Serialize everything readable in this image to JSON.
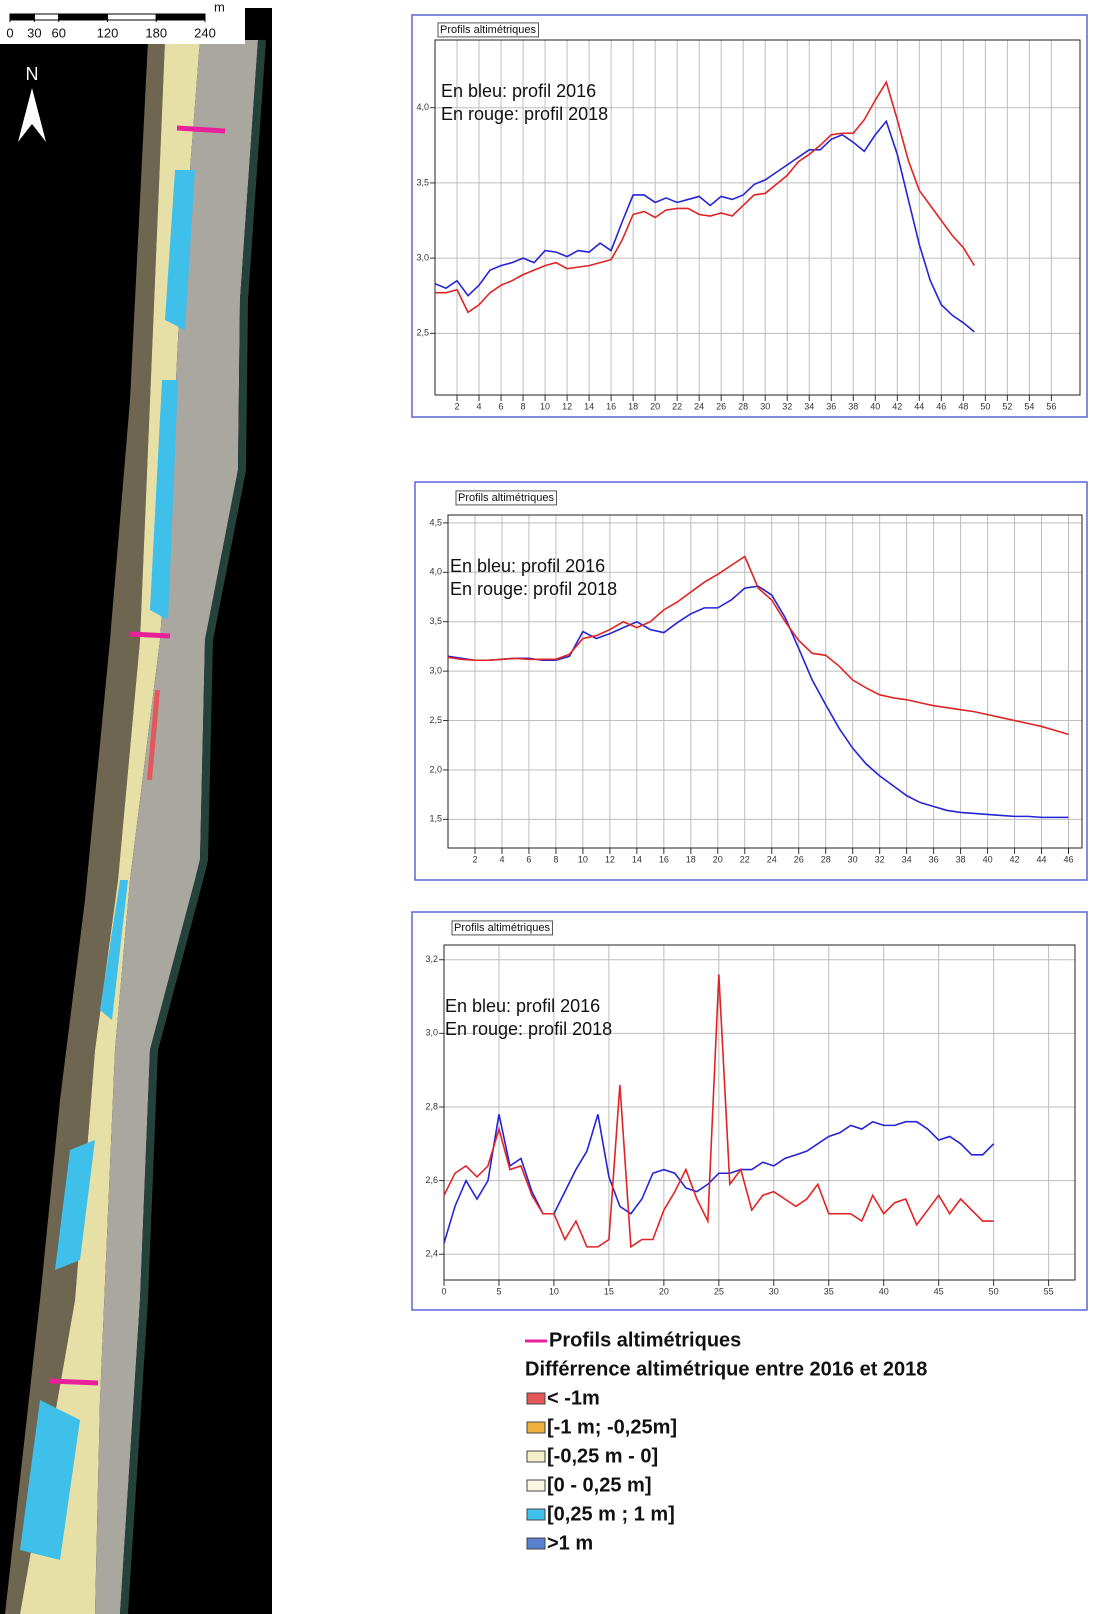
{
  "map": {
    "north": "N",
    "scale_ticks": [
      0,
      30,
      60,
      120,
      180,
      240
    ],
    "scale_unit": "m"
  },
  "legend": {
    "profile_line": {
      "label": "Profils altimétriques",
      "color": "#e8219a"
    },
    "title": "Différrence altimétrique entre 2016 et 2018",
    "items": [
      {
        "label": "< -1m",
        "color": "#e4585a"
      },
      {
        "label": "[-1 m; -0,25m]",
        "color": "#f0b040"
      },
      {
        "label": "[-0,25 m - 0]",
        "color": "#f3efc8"
      },
      {
        "label": "[0 - 0,25 m]",
        "color": "#fbf6e2"
      },
      {
        "label": "[0,25 m ; 1 m]",
        "color": "#3fc0ea"
      },
      {
        "label": ">1 m",
        "color": "#5a80d0"
      }
    ]
  },
  "chart_data": [
    {
      "type": "line",
      "title": "Profils altimétriques",
      "annotations": [
        "En bleu: profil 2016",
        "En rouge: profil 2018"
      ],
      "x": [
        0,
        1,
        2,
        3,
        4,
        5,
        6,
        7,
        8,
        9,
        10,
        11,
        12,
        13,
        14,
        15,
        16,
        17,
        18,
        19,
        20,
        21,
        22,
        23,
        24,
        25,
        26,
        27,
        28,
        29,
        30,
        31,
        32,
        33,
        34,
        35,
        36,
        37,
        38,
        39,
        40,
        41,
        42,
        43,
        44,
        45,
        46,
        47,
        48,
        49
      ],
      "series": [
        {
          "color": "#2424d8",
          "values": [
            2.83,
            2.8,
            2.85,
            2.75,
            2.82,
            2.92,
            2.95,
            2.97,
            3.0,
            2.97,
            3.05,
            3.04,
            3.01,
            3.05,
            3.04,
            3.1,
            3.05,
            3.24,
            3.42,
            3.42,
            3.37,
            3.4,
            3.37,
            3.39,
            3.41,
            3.35,
            3.41,
            3.39,
            3.42,
            3.49,
            3.52,
            3.57,
            3.62,
            3.67,
            3.72,
            3.72,
            3.79,
            3.82,
            3.77,
            3.71,
            3.82,
            3.91,
            3.69,
            3.39,
            3.09,
            2.85,
            2.69,
            2.62,
            2.57,
            2.51
          ]
        },
        {
          "color": "#e02424",
          "values": [
            2.77,
            2.77,
            2.79,
            2.64,
            2.69,
            2.77,
            2.82,
            2.85,
            2.89,
            2.92,
            2.95,
            2.97,
            2.93,
            2.94,
            2.95,
            2.97,
            2.99,
            3.12,
            3.29,
            3.31,
            3.27,
            3.32,
            3.33,
            3.33,
            3.29,
            3.28,
            3.3,
            3.28,
            3.35,
            3.42,
            3.43,
            3.49,
            3.55,
            3.64,
            3.69,
            3.75,
            3.82,
            3.83,
            3.83,
            3.92,
            4.05,
            4.17,
            3.92,
            3.65,
            3.45,
            3.35,
            3.25,
            3.15,
            3.07,
            2.95
          ]
        }
      ],
      "xlim": [
        0,
        58.6
      ],
      "ylim": [
        2.09,
        4.45
      ],
      "xticks": [
        2,
        4,
        6,
        8,
        10,
        12,
        14,
        16,
        18,
        20,
        22,
        24,
        26,
        28,
        30,
        32,
        34,
        36,
        38,
        40,
        42,
        44,
        46,
        48,
        50,
        52,
        54,
        56
      ],
      "yticks": [
        {
          "value": 2.5,
          "label": "2,5"
        },
        {
          "value": 3,
          "label": "3,0"
        },
        {
          "value": 3.5,
          "label": "3,5"
        },
        {
          "value": 4,
          "label": "4,0"
        }
      ],
      "grid": true
    },
    {
      "type": "line",
      "title": "Profils altimétriques",
      "annotations": [
        "En bleu: profil 2016",
        "En rouge: profil 2018"
      ],
      "x": [
        0,
        1,
        2,
        3,
        4,
        5,
        6,
        7,
        8,
        9,
        10,
        11,
        12,
        13,
        14,
        15,
        16,
        17,
        18,
        19,
        20,
        21,
        22,
        23,
        24,
        25,
        26,
        27,
        28,
        29,
        30,
        31,
        32,
        33,
        34,
        35,
        36,
        37,
        38,
        39,
        40,
        41,
        42,
        43,
        44,
        45,
        46
      ],
      "series": [
        {
          "color": "#2424d8",
          "values": [
            3.15,
            3.13,
            3.11,
            3.11,
            3.12,
            3.13,
            3.13,
            3.11,
            3.11,
            3.15,
            3.4,
            3.33,
            3.38,
            3.44,
            3.5,
            3.42,
            3.39,
            3.49,
            3.58,
            3.64,
            3.64,
            3.72,
            3.84,
            3.86,
            3.77,
            3.54,
            3.23,
            2.91,
            2.66,
            2.42,
            2.22,
            2.06,
            1.94,
            1.84,
            1.74,
            1.67,
            1.63,
            1.59,
            1.57,
            1.56,
            1.55,
            1.54,
            1.53,
            1.53,
            1.52,
            1.52,
            1.52
          ]
        },
        {
          "color": "#e02424",
          "values": [
            3.14,
            3.12,
            3.11,
            3.11,
            3.12,
            3.13,
            3.12,
            3.12,
            3.12,
            3.17,
            3.33,
            3.36,
            3.42,
            3.5,
            3.44,
            3.5,
            3.62,
            3.7,
            3.8,
            3.9,
            3.98,
            4.07,
            4.16,
            3.84,
            3.72,
            3.5,
            3.31,
            3.18,
            3.16,
            3.05,
            2.91,
            2.83,
            2.76,
            2.73,
            2.71,
            2.68,
            2.65,
            2.63,
            2.61,
            2.59,
            2.56,
            2.53,
            2.5,
            2.47,
            2.44,
            2.4,
            2.36
          ]
        }
      ],
      "xlim": [
        0,
        47
      ],
      "ylim": [
        1.21,
        4.58
      ],
      "xticks": [
        2,
        4,
        6,
        8,
        10,
        12,
        14,
        16,
        18,
        20,
        22,
        24,
        26,
        28,
        30,
        32,
        34,
        36,
        38,
        40,
        42,
        44,
        46
      ],
      "yticks": [
        {
          "value": 1.5,
          "label": "1,5"
        },
        {
          "value": 2,
          "label": "2,0"
        },
        {
          "value": 2.5,
          "label": "2,5"
        },
        {
          "value": 3,
          "label": "3,0"
        },
        {
          "value": 3.5,
          "label": "3,5"
        },
        {
          "value": 4,
          "label": "4,0"
        },
        {
          "value": 4.5,
          "label": "4,5"
        }
      ],
      "grid": true
    },
    {
      "type": "line",
      "title": "Profils altimétriques",
      "annotations": [
        "En bleu: profil 2016",
        "En rouge: profil 2018"
      ],
      "x": [
        0,
        1,
        2,
        3,
        4,
        5,
        6,
        7,
        8,
        9,
        10,
        11,
        12,
        13,
        14,
        15,
        16,
        17,
        18,
        19,
        20,
        21,
        22,
        23,
        24,
        25,
        26,
        27,
        28,
        29,
        30,
        31,
        32,
        33,
        34,
        35,
        36,
        37,
        38,
        39,
        40,
        41,
        42,
        43,
        44,
        45,
        46,
        47,
        48,
        49,
        50
      ],
      "series": [
        {
          "color": "#2424d8",
          "values": [
            2.43,
            2.53,
            2.6,
            2.55,
            2.6,
            2.78,
            2.64,
            2.66,
            2.57,
            2.51,
            2.51,
            2.57,
            2.63,
            2.68,
            2.78,
            2.61,
            2.53,
            2.51,
            2.55,
            2.62,
            2.63,
            2.62,
            2.58,
            2.57,
            2.59,
            2.62,
            2.62,
            2.63,
            2.63,
            2.65,
            2.64,
            2.66,
            2.67,
            2.68,
            2.7,
            2.72,
            2.73,
            2.75,
            2.74,
            2.76,
            2.75,
            2.75,
            2.76,
            2.76,
            2.74,
            2.71,
            2.72,
            2.7,
            2.67,
            2.67,
            2.7
          ]
        },
        {
          "color": "#e02424",
          "values": [
            2.56,
            2.62,
            2.64,
            2.61,
            2.64,
            2.74,
            2.63,
            2.64,
            2.56,
            2.51,
            2.51,
            2.44,
            2.49,
            2.42,
            2.42,
            2.44,
            2.86,
            2.42,
            2.44,
            2.44,
            2.52,
            2.57,
            2.63,
            2.55,
            2.49,
            3.16,
            2.59,
            2.63,
            2.52,
            2.56,
            2.57,
            2.55,
            2.53,
            2.55,
            2.59,
            2.51,
            2.51,
            2.51,
            2.49,
            2.56,
            2.51,
            2.54,
            2.55,
            2.48,
            2.52,
            2.56,
            2.51,
            2.55,
            2.52,
            2.49,
            2.49
          ]
        }
      ],
      "xlim": [
        0,
        57.4
      ],
      "ylim": [
        2.33,
        3.24
      ],
      "xticks": [
        0,
        5,
        10,
        15,
        20,
        25,
        30,
        35,
        40,
        45,
        50,
        55
      ],
      "yticks": [
        {
          "value": 2.4,
          "label": "2,4"
        },
        {
          "value": 2.6,
          "label": "2,6"
        },
        {
          "value": 2.8,
          "label": "2,8"
        },
        {
          "value": 3,
          "label": "3,0"
        },
        {
          "value": 3.2,
          "label": "3,2"
        }
      ],
      "grid": true
    }
  ]
}
